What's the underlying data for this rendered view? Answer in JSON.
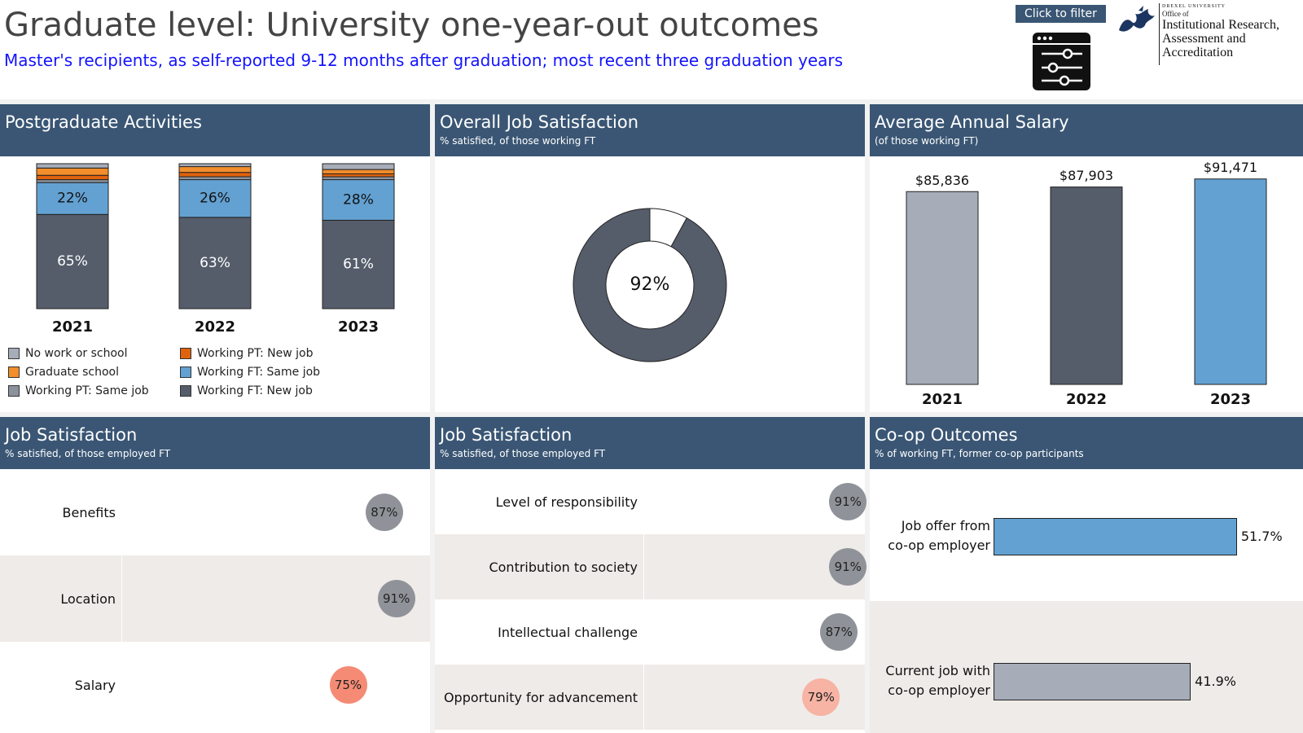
{
  "header": {
    "title": "Graduate level: University one-year-out outcomes",
    "subtitle": "Master's recipients, as self-reported 9-12 months after graduation; most recent three graduation years",
    "filter_label": "Click to filter",
    "filter_icon": "filter-settings-icon",
    "logo": {
      "university": "DREXEL UNIVERSITY",
      "office_of": "Office of",
      "name": "Institutional Research, Assessment and Accreditation",
      "icon": "dragon-logo-icon"
    }
  },
  "colors": {
    "header_bg": "#3a5674",
    "no_work": "#a6adb9",
    "grad_school": "#f28e2b",
    "pt_same": "#8c929c",
    "pt_new": "#e0620d",
    "ft_same": "#63a1d2",
    "ft_new": "#555d6b",
    "sat_dark": "#8f9399",
    "sat_light": "#f58b75",
    "sat_lighter": "#f7b3a3",
    "coop_offer": "#63a1d2",
    "coop_current": "#a6adb9"
  },
  "panels": {
    "activities": {
      "title": "Postgraduate Activities"
    },
    "overall": {
      "title": "Overall Job Satisfaction",
      "subtitle": "% satisfied, of those working FT"
    },
    "salary": {
      "title": "Average Annual Salary",
      "subtitle": "(of those working FT)"
    },
    "jobsat1": {
      "title": "Job Satisfaction",
      "subtitle": "% satisfied, of those employed FT"
    },
    "jobsat2": {
      "title": "Job Satisfaction",
      "subtitle": "% satisfied, of those employed FT"
    },
    "coop": {
      "title": "Co-op Outcomes",
      "subtitle": "% of working FT, former co-op participants"
    }
  },
  "legend": [
    {
      "label": "No work or school",
      "color": "#a6adb9"
    },
    {
      "label": "Working PT: New job",
      "color": "#e0620d"
    },
    {
      "label": "Graduate school",
      "color": "#f28e2b"
    },
    {
      "label": "Working FT: Same job",
      "color": "#63a1d2"
    },
    {
      "label": "Working PT: Same job",
      "color": "#8c929c"
    },
    {
      "label": "Working FT: New job",
      "color": "#555d6b"
    }
  ],
  "chart_data": [
    {
      "type": "bar",
      "stacked": true,
      "title": "Postgraduate Activities",
      "categories": [
        "2021",
        "2022",
        "2023"
      ],
      "series": [
        {
          "name": "Working FT: New job",
          "values": [
            65,
            63,
            61
          ],
          "color": "#555d6b",
          "labels": [
            "65%",
            "63%",
            "61%"
          ]
        },
        {
          "name": "Working FT: Same job",
          "values": [
            22,
            26,
            28
          ],
          "color": "#63a1d2",
          "labels": [
            "22%",
            "26%",
            "28%"
          ]
        },
        {
          "name": "Working PT: Same job",
          "values": [
            2,
            2,
            2
          ],
          "color": "#8c929c"
        },
        {
          "name": "Working PT: New job",
          "values": [
            3,
            3,
            2
          ],
          "color": "#e0620d"
        },
        {
          "name": "Graduate school",
          "values": [
            5,
            4,
            3
          ],
          "color": "#f28e2b"
        },
        {
          "name": "No work or school",
          "values": [
            3,
            2,
            4
          ],
          "color": "#a6adb9"
        }
      ],
      "ylim": [
        0,
        100
      ]
    },
    {
      "type": "pie",
      "donut": true,
      "title": "Overall Job Satisfaction",
      "subtitle": "% satisfied, of those working FT",
      "slices": [
        {
          "value": 92,
          "color": "#555d6b"
        },
        {
          "value": 8,
          "color": "#ffffff"
        }
      ],
      "center_label": "92%"
    },
    {
      "type": "bar",
      "title": "Average Annual Salary",
      "subtitle": "(of those working FT)",
      "categories": [
        "2021",
        "2022",
        "2023"
      ],
      "values": [
        85836,
        87903,
        91471
      ],
      "labels": [
        "$85,836",
        "$87,903",
        "$91,471"
      ],
      "colors": [
        "#a6adb9",
        "#555d6b",
        "#63a1d2"
      ],
      "ylim": [
        0,
        95000
      ]
    },
    {
      "type": "scatter",
      "title": "Job Satisfaction",
      "subtitle": "% satisfied, of those employed FT",
      "categories": [
        "Benefits",
        "Location",
        "Salary"
      ],
      "values": [
        87,
        91,
        75
      ],
      "labels": [
        "87%",
        "91%",
        "75%"
      ],
      "colors": [
        "#8f9399",
        "#8f9399",
        "#f58b75"
      ],
      "xlim": [
        0,
        100
      ]
    },
    {
      "type": "scatter",
      "title": "Job Satisfaction",
      "subtitle": "% satisfied, of those employed FT",
      "categories": [
        "Level of responsibility",
        "Contribution to society",
        "Intellectual challenge",
        "Opportunity for advancement"
      ],
      "values": [
        91,
        91,
        87,
        79
      ],
      "labels": [
        "91%",
        "91%",
        "87%",
        "79%"
      ],
      "colors": [
        "#8f9399",
        "#8f9399",
        "#8f9399",
        "#f7b3a3"
      ],
      "xlim": [
        0,
        100
      ]
    },
    {
      "type": "bar",
      "orientation": "horizontal",
      "title": "Co-op Outcomes",
      "subtitle": "% of working FT, former co-op participants",
      "categories": [
        [
          "Job offer from",
          "co-op employer"
        ],
        [
          "Current job with",
          "co-op employer"
        ]
      ],
      "values": [
        51.7,
        41.9
      ],
      "labels": [
        "51.7%",
        "41.9%"
      ],
      "colors": [
        "#63a1d2",
        "#a6adb9"
      ]
    }
  ]
}
